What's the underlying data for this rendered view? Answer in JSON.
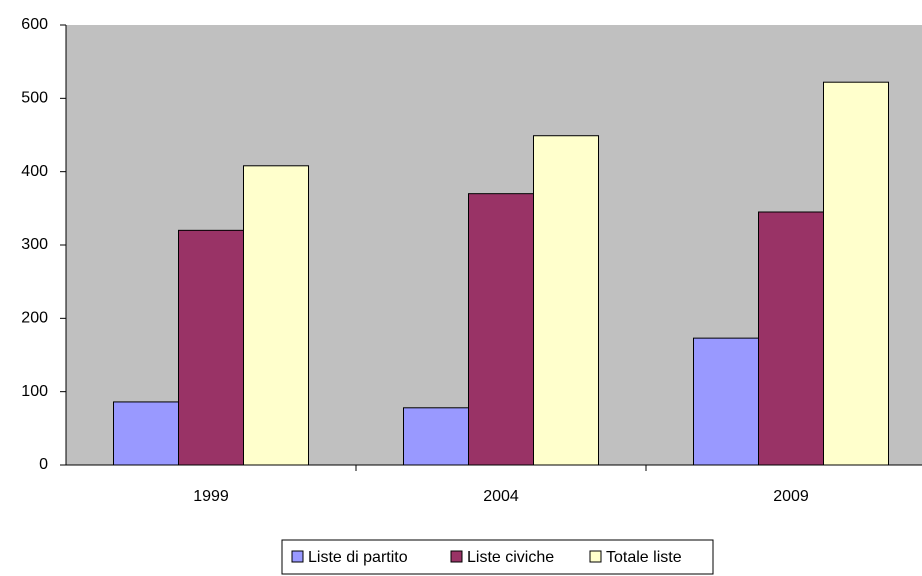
{
  "chart_data": {
    "type": "bar",
    "categories": [
      "1999",
      "2004",
      "2009"
    ],
    "series": [
      {
        "name": "Liste di partito",
        "color": "#9999ff",
        "values": [
          86,
          78,
          173
        ]
      },
      {
        "name": "Liste civiche",
        "color": "#993366",
        "values": [
          320,
          370,
          345
        ]
      },
      {
        "name": "Totale liste",
        "color": "#ffffcc",
        "values": [
          408,
          449,
          522
        ]
      }
    ],
    "ylim": [
      0,
      600
    ],
    "yticks": [
      0,
      100,
      200,
      300,
      400,
      500,
      600
    ],
    "plot_background": "#c0c0c0",
    "legend": "bottom"
  }
}
